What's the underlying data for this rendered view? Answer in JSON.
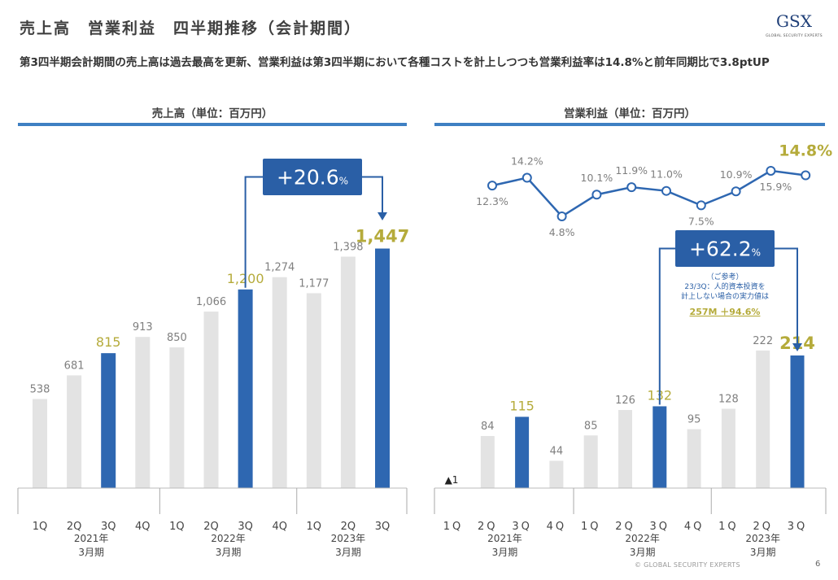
{
  "header": {
    "title": "売上高　営業利益　四半期推移（会計期間）",
    "subtitle": "第3四半期会計期間の売上高は過去最高を更新、営業利益は第3四半期において各種コストを計上しつつも営業利益率は14.8%と前年同期比で3.8ptUP"
  },
  "logo": {
    "mark": "GSX",
    "sub": "GLOBAL SECURITY EXPERTS"
  },
  "colors": {
    "highlight_bar": "#2e67b1",
    "normal_bar": "#e3e3e3",
    "highlight_text": "#b5ab3b",
    "label_text": "#7f7f7f",
    "callout": "#2a5fa6",
    "panel_rule": "#3f80c3"
  },
  "footer": {
    "copyright": "© GLOBAL SECURITY EXPERTS",
    "page": "6"
  },
  "chart_data": [
    {
      "type": "bar",
      "title": "売上高（単位：百万円）",
      "groups": [
        "2021年\n3月期",
        "2022年\n3月期",
        "2023年\n3月期"
      ],
      "categories": [
        "1Q",
        "2Q",
        "3Q",
        "4Q",
        "1Q",
        "2Q",
        "3Q",
        "4Q",
        "1Q",
        "2Q",
        "3Q"
      ],
      "values": [
        538,
        681,
        815,
        913,
        850,
        1066,
        1200,
        1274,
        1177,
        1398,
        1447
      ],
      "value_labels": [
        "538",
        "681",
        "815",
        "913",
        "850",
        "1,066",
        "1,200",
        "1,274",
        "1,177",
        "1,398",
        "1,447"
      ],
      "highlight": [
        false,
        false,
        true,
        false,
        false,
        false,
        true,
        false,
        false,
        false,
        true
      ],
      "callout": {
        "value": "+20.6",
        "unit": "%"
      }
    },
    {
      "type": "bar",
      "title": "営業利益（単位：百万円）",
      "groups": [
        "2021年\n3月期",
        "2022年\n3月期",
        "2023年\n3月期"
      ],
      "categories": [
        "1Q",
        "2Q",
        "3Q",
        "4Q",
        "1Q",
        "2Q",
        "3Q",
        "4Q",
        "1Q",
        "2Q",
        "3Q"
      ],
      "values": [
        -1,
        84,
        115,
        44,
        85,
        126,
        132,
        95,
        128,
        222,
        214
      ],
      "value_labels": [
        "▲1",
        "84",
        "115",
        "44",
        "85",
        "126",
        "132",
        "95",
        "128",
        "222",
        "214"
      ],
      "highlight": [
        false,
        false,
        true,
        false,
        false,
        false,
        true,
        false,
        false,
        false,
        true
      ],
      "margin_series": {
        "name": "営業利益率",
        "values": [
          12.3,
          14.2,
          4.8,
          10.1,
          11.9,
          11.0,
          7.5,
          10.9,
          15.9,
          14.8
        ],
        "labels": [
          "12.3%",
          "14.2%",
          "4.8%",
          "10.1%",
          "11.9%",
          "11.0%",
          "7.5%",
          "10.9%",
          "15.9%",
          "14.8%"
        ]
      },
      "callout": {
        "value": "+62.2",
        "unit": "%",
        "note_lines": [
          "（ご参考）",
          "23/3Q：人的資本投資を",
          "計上しない場合の実力値は"
        ],
        "note_highlight": "257M ＋94.6%"
      }
    }
  ]
}
